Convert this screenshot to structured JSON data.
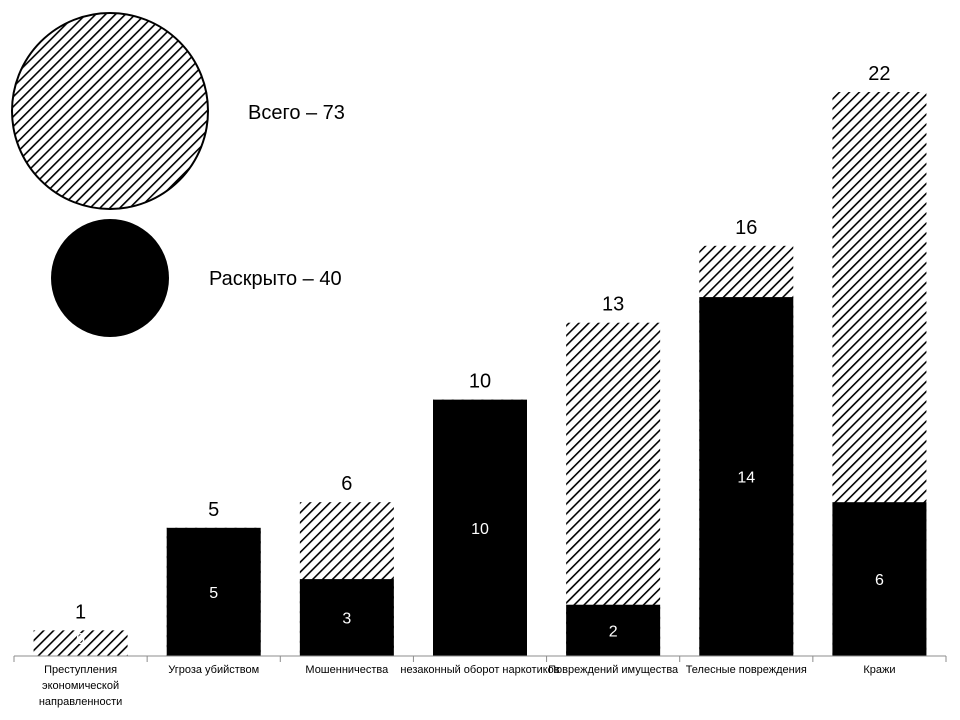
{
  "legend": {
    "total_label": "Всего – 73",
    "solved_label": "Раскрыто – 40"
  },
  "chart_data": {
    "type": "bar",
    "stacked": false,
    "overlap": true,
    "categories": [
      "Преступления экономической направленности",
      "Угроза убийством",
      "Мошенничества",
      "незаконный оборот наркотиков",
      "Повреждений имущества",
      "Телесные повреждения",
      "Кражи"
    ],
    "series": [
      {
        "key": "total",
        "legend": "legend.total_label",
        "pattern": "hatch",
        "values": [
          1,
          5,
          6,
          10,
          13,
          16,
          22
        ]
      },
      {
        "key": "solved",
        "legend": "legend.solved_label",
        "pattern": "solid",
        "color": "#000000",
        "values": [
          0,
          5,
          3,
          10,
          2,
          14,
          6
        ]
      }
    ],
    "ylim": [
      0,
      22
    ],
    "grid": false,
    "legend_position": "top-left"
  }
}
